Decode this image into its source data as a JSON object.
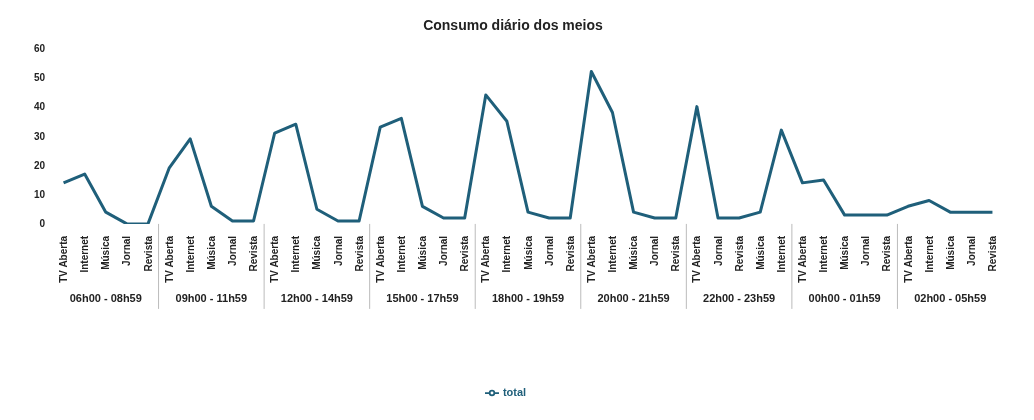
{
  "chart_data": {
    "type": "line",
    "title": "Consumo diário dos meios",
    "categories": [
      "TV Aberta",
      "Internet",
      "Música",
      "Jornal",
      "Revista",
      "TV Aberta",
      "Internet",
      "Música",
      "Jornal",
      "Revista",
      "TV Aberta",
      "Internet",
      "Música",
      "Jornal",
      "Revista",
      "TV Aberta",
      "Internet",
      "Música",
      "Jornal",
      "Revista",
      "TV Aberta",
      "Internet",
      "Música",
      "Jornal",
      "Revista",
      "TV Aberta",
      "Internet",
      "Música",
      "Jornal",
      "Revista",
      "TV Aberta",
      "Jornal",
      "Revista",
      "Música",
      "Internet",
      "TV Aberta",
      "Internet",
      "Música",
      "Jornal",
      "Revista",
      "TV Aberta",
      "Internet",
      "Música",
      "Jornal",
      "Revista"
    ],
    "series": [
      {
        "name": "total",
        "color": "#1f5f7a",
        "values": [
          14,
          17,
          4,
          0,
          0,
          19,
          29,
          6,
          1,
          1,
          31,
          34,
          5,
          1,
          1,
          33,
          36,
          6,
          2,
          2,
          44,
          35,
          4,
          2,
          2,
          52,
          38,
          4,
          2,
          2,
          40,
          2,
          2,
          4,
          32,
          14,
          15,
          3,
          3,
          3,
          6,
          8,
          4,
          4,
          4
        ]
      }
    ],
    "annotations": [
      "06h00 - 08h59",
      "09h00 - 11h59",
      "12h00 - 14h59",
      "15h00 - 17h59",
      "18h00 - 19h59",
      "20h00 - 21h59",
      "22h00 - 23h59",
      "00h00 - 01h59",
      "02h00 - 05h59"
    ],
    "ylim": [
      0,
      60
    ],
    "yticks": [
      0,
      10,
      20,
      30,
      40,
      50,
      60
    ],
    "grid": false,
    "legend": "bottom",
    "marker": "none",
    "line_style": "solid"
  }
}
